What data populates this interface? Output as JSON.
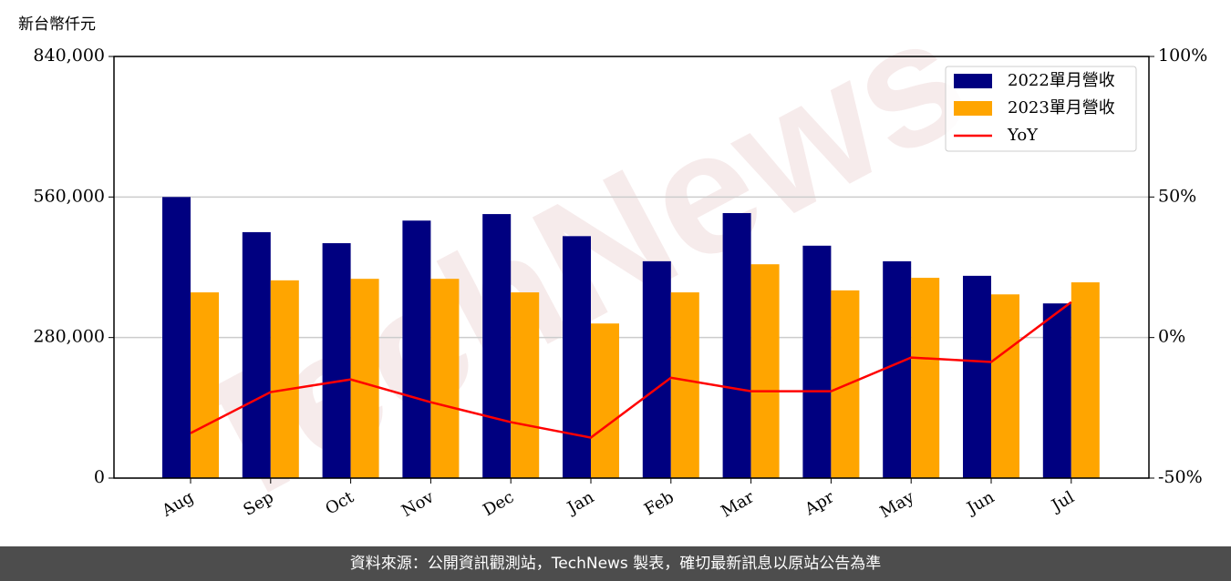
{
  "chart_data": {
    "type": "bar_line",
    "y_label": "新台幣仟元",
    "categories": [
      "Aug",
      "Sep",
      "Oct",
      "Nov",
      "Dec",
      "Jan",
      "Feb",
      "Mar",
      "Apr",
      "May",
      "Jun",
      "Jul"
    ],
    "series": [
      {
        "name": "2022單月營收",
        "type": "bar",
        "color": "#000080",
        "values": [
          560000,
          490000,
          468000,
          513000,
          526000,
          482000,
          432000,
          528000,
          463000,
          432000,
          403000,
          348000
        ]
      },
      {
        "name": "2023單月營收",
        "type": "bar",
        "color": "#ffa500",
        "values": [
          370000,
          394000,
          397000,
          397000,
          370000,
          308000,
          370000,
          426000,
          374000,
          399000,
          366000,
          390000
        ]
      },
      {
        "name": "YoY",
        "type": "line",
        "axis": "y2",
        "color": "#ff0000",
        "values": [
          -34.0,
          -19.4,
          -14.9,
          -23.0,
          -30.1,
          -35.6,
          -14.3,
          -19.1,
          -19.1,
          -7.1,
          -8.7,
          12.6
        ]
      }
    ],
    "ylim": [
      0,
      840000
    ],
    "yticks": [
      {
        "value": 0,
        "label": "0"
      },
      {
        "value": 280000,
        "label": "280,000"
      },
      {
        "value": 560000,
        "label": "560,000"
      },
      {
        "value": 840000,
        "label": "840,000"
      }
    ],
    "y2lim": [
      -50,
      100
    ],
    "y2ticks": [
      {
        "value": -50,
        "label": "-50%"
      },
      {
        "value": 0,
        "label": "0%"
      },
      {
        "value": 50,
        "label": "50%"
      },
      {
        "value": 100,
        "label": "100%"
      }
    ],
    "grid": true,
    "legend": "upper right",
    "watermark": "TechNews",
    "source": "資料來源：公開資訊觀測站，TechNews 製表，確切最新訊息以原站公告為準"
  }
}
